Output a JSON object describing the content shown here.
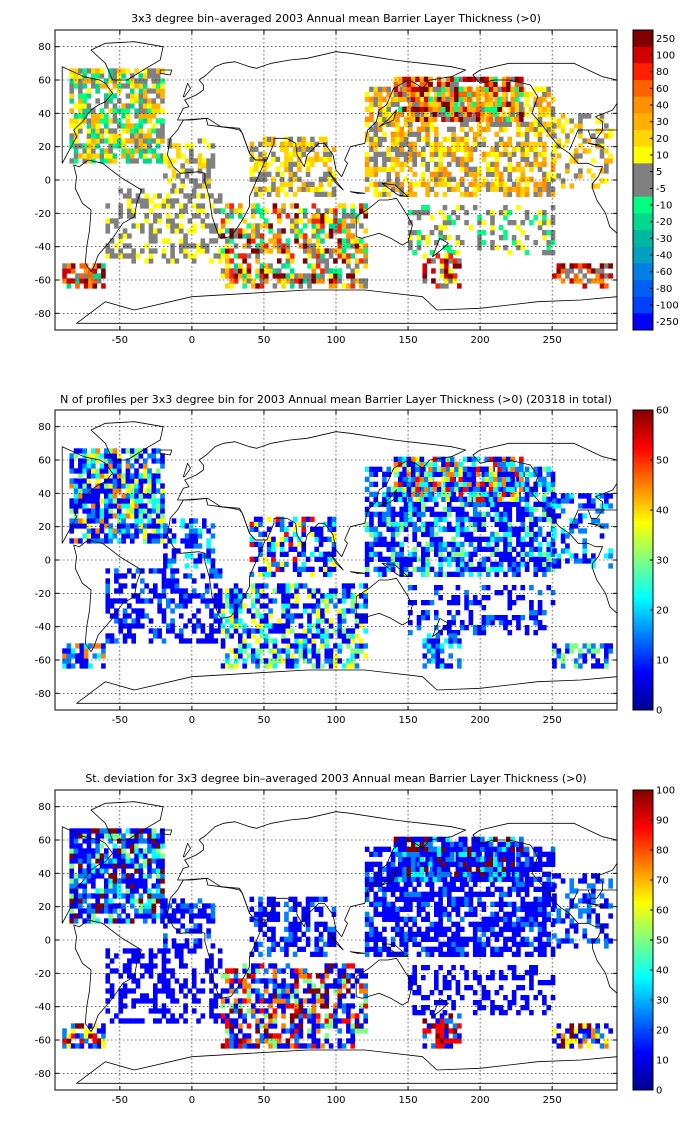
{
  "palette": {
    "jet": [
      "#00008f",
      "#0000ff",
      "#0080ff",
      "#00ffff",
      "#80ff80",
      "#ffff00",
      "#ff8000",
      "#ff0000",
      "#800000"
    ],
    "bin_gray": "#808080"
  },
  "chart_data": [
    {
      "type": "heatmap",
      "title": "3x3 degree bin–averaged 2003 Annual mean Barrier Layer Thickness (>0)",
      "xlabel": "",
      "ylabel": "",
      "xlim": [
        -95,
        295
      ],
      "ylim": [
        -90,
        90
      ],
      "x_ticks": [
        -50,
        0,
        50,
        100,
        150,
        200,
        250
      ],
      "y_ticks": [
        -80,
        -60,
        -40,
        -20,
        0,
        20,
        40,
        60,
        80
      ],
      "grid": true,
      "colorbar": {
        "kind": "discrete",
        "labels": [
          "250",
          "100",
          "80",
          "60",
          "40",
          "30",
          "20",
          "10",
          "5",
          "-5",
          "-10",
          "-20",
          "-30",
          "-40",
          "-60",
          "-80",
          "-100",
          "-250"
        ],
        "colors": [
          "#800000",
          "#d00000",
          "#ff2000",
          "#ff6000",
          "#ff9000",
          "#ffb000",
          "#ffd700",
          "#ffff00",
          "#808080",
          "#808080",
          "#00ff80",
          "#00d890",
          "#00b8a0",
          "#00a0c0",
          "#0080e0",
          "#0060f0",
          "#0040ff",
          "#0000ff"
        ]
      },
      "regions": [
        {
          "lon": [
            -85,
            -20
          ],
          "lat": [
            10,
            65
          ],
          "density": 0.75,
          "levels": [
            5,
            6,
            7,
            8,
            9,
            10,
            11
          ]
        },
        {
          "lon": [
            -20,
            15
          ],
          "lat": [
            -5,
            25
          ],
          "density": 0.5,
          "levels": [
            6,
            7,
            8,
            9
          ]
        },
        {
          "lon": [
            -60,
            20
          ],
          "lat": [
            -50,
            -5
          ],
          "density": 0.45,
          "levels": [
            7,
            8,
            9
          ]
        },
        {
          "lon": [
            -90,
            -60
          ],
          "lat": [
            -65,
            -50
          ],
          "density": 0.7,
          "levels": [
            0,
            1,
            3,
            4,
            8,
            11
          ]
        },
        {
          "lon": [
            40,
            100
          ],
          "lat": [
            -10,
            25
          ],
          "density": 0.55,
          "levels": [
            5,
            6,
            7,
            8,
            9
          ]
        },
        {
          "lon": [
            20,
            120
          ],
          "lat": [
            -65,
            -15
          ],
          "density": 0.6,
          "levels": [
            0,
            2,
            4,
            5,
            6,
            7,
            8,
            9,
            10,
            11
          ]
        },
        {
          "lon": [
            120,
            250
          ],
          "lat": [
            -10,
            55
          ],
          "density": 0.65,
          "levels": [
            4,
            5,
            6,
            7,
            8,
            9
          ]
        },
        {
          "lon": [
            140,
            230
          ],
          "lat": [
            35,
            62
          ],
          "density": 0.8,
          "levels": [
            0,
            1,
            3,
            4,
            5,
            6,
            9,
            10
          ]
        },
        {
          "lon": [
            150,
            250
          ],
          "lat": [
            -45,
            -15
          ],
          "density": 0.35,
          "levels": [
            7,
            8,
            9,
            10
          ]
        },
        {
          "lon": [
            160,
            185
          ],
          "lat": [
            -65,
            -45
          ],
          "density": 0.6,
          "levels": [
            0,
            1,
            2,
            7,
            8
          ]
        },
        {
          "lon": [
            250,
            290
          ],
          "lat": [
            -65,
            -50
          ],
          "density": 0.55,
          "levels": [
            0,
            1,
            3,
            4,
            8
          ]
        },
        {
          "lon": [
            250,
            290
          ],
          "lat": [
            -5,
            40
          ],
          "density": 0.4,
          "levels": [
            5,
            6,
            7,
            8,
            9
          ]
        }
      ]
    },
    {
      "type": "heatmap",
      "title": "N of profiles per 3x3 degree bin for 2003 Annual mean Barrier Layer Thickness (>0) (20318 in total)",
      "xlabel": "",
      "ylabel": "",
      "xlim": [
        -95,
        295
      ],
      "ylim": [
        -90,
        90
      ],
      "x_ticks": [
        -50,
        0,
        50,
        100,
        150,
        200,
        250
      ],
      "y_ticks": [
        -80,
        -60,
        -40,
        -20,
        0,
        20,
        40,
        60,
        80
      ],
      "grid": true,
      "colorbar": {
        "kind": "continuous",
        "range": [
          0,
          60
        ],
        "ticks": [
          0,
          10,
          20,
          30,
          40,
          50,
          60
        ],
        "colors": [
          "#00008f",
          "#0000ff",
          "#0080ff",
          "#00ffff",
          "#80ff80",
          "#ffff00",
          "#ff8000",
          "#ff0000",
          "#800000"
        ]
      },
      "regions": [
        {
          "lon": [
            -85,
            -20
          ],
          "lat": [
            10,
            65
          ],
          "density": 0.8,
          "levels": [
            1,
            1,
            1,
            1,
            2,
            2,
            3,
            4,
            5,
            6
          ]
        },
        {
          "lon": [
            -20,
            15
          ],
          "lat": [
            -5,
            25
          ],
          "density": 0.5,
          "levels": [
            1,
            1,
            1,
            2,
            3
          ]
        },
        {
          "lon": [
            -60,
            20
          ],
          "lat": [
            -50,
            -5
          ],
          "density": 0.45,
          "levels": [
            1,
            1,
            1,
            2
          ]
        },
        {
          "lon": [
            -90,
            -60
          ],
          "lat": [
            -65,
            -50
          ],
          "density": 0.7,
          "levels": [
            1,
            1,
            2,
            3,
            6
          ]
        },
        {
          "lon": [
            40,
            100
          ],
          "lat": [
            -10,
            25
          ],
          "density": 0.55,
          "levels": [
            1,
            1,
            1,
            2,
            3,
            5,
            7
          ]
        },
        {
          "lon": [
            20,
            120
          ],
          "lat": [
            -65,
            -15
          ],
          "density": 0.6,
          "levels": [
            1,
            1,
            1,
            2,
            3,
            4,
            5
          ]
        },
        {
          "lon": [
            120,
            250
          ],
          "lat": [
            -10,
            55
          ],
          "density": 0.65,
          "levels": [
            1,
            1,
            1,
            1,
            2,
            2,
            3,
            4
          ]
        },
        {
          "lon": [
            140,
            230
          ],
          "lat": [
            35,
            62
          ],
          "density": 0.8,
          "levels": [
            1,
            1,
            2,
            3,
            4,
            5,
            6,
            7
          ]
        },
        {
          "lon": [
            150,
            250
          ],
          "lat": [
            -45,
            -15
          ],
          "density": 0.35,
          "levels": [
            1,
            1,
            1,
            2
          ]
        },
        {
          "lon": [
            160,
            185
          ],
          "lat": [
            -65,
            -45
          ],
          "density": 0.6,
          "levels": [
            1,
            1,
            2,
            3
          ]
        },
        {
          "lon": [
            250,
            290
          ],
          "lat": [
            -65,
            -50
          ],
          "density": 0.55,
          "levels": [
            1,
            1,
            2,
            4
          ]
        },
        {
          "lon": [
            250,
            290
          ],
          "lat": [
            -5,
            40
          ],
          "density": 0.4,
          "levels": [
            1,
            1,
            2,
            3
          ]
        }
      ]
    },
    {
      "type": "heatmap",
      "title": "St. deviation for 3x3 degree bin–averaged 2003 Annual mean Barrier Layer Thickness (>0)",
      "xlabel": "",
      "ylabel": "",
      "xlim": [
        -95,
        295
      ],
      "ylim": [
        -90,
        90
      ],
      "x_ticks": [
        -50,
        0,
        50,
        100,
        150,
        200,
        250
      ],
      "y_ticks": [
        -80,
        -60,
        -40,
        -20,
        0,
        20,
        40,
        60,
        80
      ],
      "grid": true,
      "colorbar": {
        "kind": "continuous",
        "range": [
          0,
          100
        ],
        "ticks": [
          0,
          10,
          20,
          30,
          40,
          50,
          60,
          70,
          80,
          90,
          100
        ],
        "colors": [
          "#00008f",
          "#0000ff",
          "#0080ff",
          "#00ffff",
          "#80ff80",
          "#ffff00",
          "#ff8000",
          "#ff0000",
          "#800000"
        ]
      },
      "regions": [
        {
          "lon": [
            -85,
            -20
          ],
          "lat": [
            10,
            65
          ],
          "density": 0.8,
          "levels": [
            1,
            1,
            1,
            1,
            2,
            2,
            3,
            4,
            8
          ]
        },
        {
          "lon": [
            -20,
            15
          ],
          "lat": [
            -5,
            25
          ],
          "density": 0.5,
          "levels": [
            1,
            1,
            1,
            2
          ]
        },
        {
          "lon": [
            -60,
            20
          ],
          "lat": [
            -50,
            -5
          ],
          "density": 0.45,
          "levels": [
            1,
            1,
            1
          ]
        },
        {
          "lon": [
            -90,
            -60
          ],
          "lat": [
            -65,
            -50
          ],
          "density": 0.7,
          "levels": [
            1,
            2,
            5,
            7,
            8
          ]
        },
        {
          "lon": [
            40,
            100
          ],
          "lat": [
            -10,
            25
          ],
          "density": 0.55,
          "levels": [
            1,
            1,
            1,
            2
          ]
        },
        {
          "lon": [
            20,
            120
          ],
          "lat": [
            -65,
            -15
          ],
          "density": 0.6,
          "levels": [
            1,
            1,
            1,
            2,
            4,
            6,
            7,
            8
          ]
        },
        {
          "lon": [
            120,
            250
          ],
          "lat": [
            -10,
            55
          ],
          "density": 0.65,
          "levels": [
            1,
            1,
            1,
            1,
            2
          ]
        },
        {
          "lon": [
            140,
            230
          ],
          "lat": [
            35,
            62
          ],
          "density": 0.8,
          "levels": [
            1,
            1,
            1,
            2,
            3,
            8
          ]
        },
        {
          "lon": [
            150,
            250
          ],
          "lat": [
            -45,
            -15
          ],
          "density": 0.35,
          "levels": [
            1,
            1,
            1
          ]
        },
        {
          "lon": [
            160,
            185
          ],
          "lat": [
            -65,
            -45
          ],
          "density": 0.6,
          "levels": [
            1,
            2,
            7,
            8
          ]
        },
        {
          "lon": [
            250,
            290
          ],
          "lat": [
            -65,
            -50
          ],
          "density": 0.55,
          "levels": [
            1,
            2,
            5,
            6,
            8
          ]
        },
        {
          "lon": [
            250,
            290
          ],
          "lat": [
            -5,
            40
          ],
          "density": 0.4,
          "levels": [
            1,
            1,
            2
          ]
        }
      ]
    }
  ]
}
